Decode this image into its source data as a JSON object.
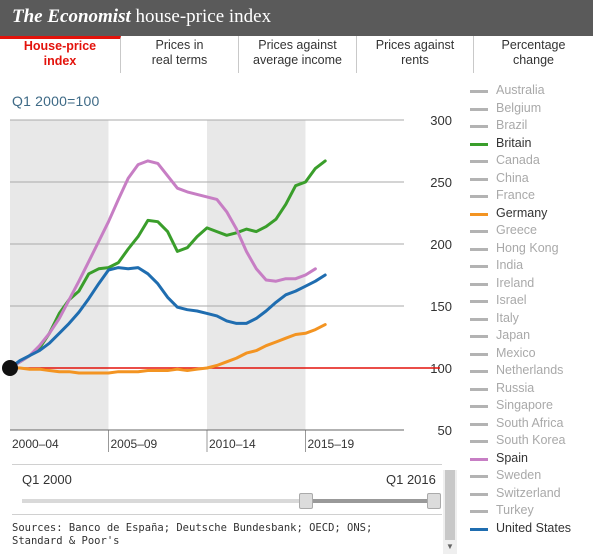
{
  "header": {
    "title_italic": "The Economist",
    "title_rest": " house-price index"
  },
  "tabs": [
    {
      "line1": "House-price",
      "line2": "index",
      "active": true
    },
    {
      "line1": "Prices in",
      "line2": "real terms",
      "active": false
    },
    {
      "line1": "Prices against",
      "line2": "average income",
      "active": false
    },
    {
      "line1": "Prices against",
      "line2": "rents",
      "active": false
    },
    {
      "line1": "Percentage",
      "line2": "change",
      "active": false
    }
  ],
  "range": {
    "start_label": "Q1 2000",
    "end_label": "Q1 2016",
    "start_frac": 0.68,
    "end_frac": 0.985
  },
  "sources": {
    "line1": "Sources: Banco de España; Deutsche Bundesbank; OECD; ONS;",
    "line2": "Standard & Poor's"
  },
  "legend": [
    {
      "name": "Australia",
      "active": false
    },
    {
      "name": "Belgium",
      "active": false
    },
    {
      "name": "Brazil",
      "active": false
    },
    {
      "name": "Britain",
      "active": true,
      "color": "#3a9e2b"
    },
    {
      "name": "Canada",
      "active": false
    },
    {
      "name": "China",
      "active": false
    },
    {
      "name": "France",
      "active": false
    },
    {
      "name": "Germany",
      "active": true,
      "color": "#f39422"
    },
    {
      "name": "Greece",
      "active": false
    },
    {
      "name": "Hong Kong",
      "active": false
    },
    {
      "name": "India",
      "active": false
    },
    {
      "name": "Ireland",
      "active": false
    },
    {
      "name": "Israel",
      "active": false
    },
    {
      "name": "Italy",
      "active": false
    },
    {
      "name": "Japan",
      "active": false
    },
    {
      "name": "Mexico",
      "active": false
    },
    {
      "name": "Netherlands",
      "active": false
    },
    {
      "name": "Russia",
      "active": false
    },
    {
      "name": "Singapore",
      "active": false
    },
    {
      "name": "South Africa",
      "active": false
    },
    {
      "name": "South Korea",
      "active": false
    },
    {
      "name": "Spain",
      "active": true,
      "color": "#c77ec4"
    },
    {
      "name": "Sweden",
      "active": false
    },
    {
      "name": "Switzerland",
      "active": false
    },
    {
      "name": "Turkey",
      "active": false
    },
    {
      "name": "United States",
      "active": true,
      "color": "#1f6db0"
    }
  ],
  "chart_data": {
    "type": "line",
    "title": "",
    "subtitle": "Q1 2000=100",
    "xlabel": "",
    "ylabel": "",
    "ylim": [
      50,
      300
    ],
    "xlim": [
      2000.0,
      2020.0
    ],
    "yticks": [
      50,
      100,
      150,
      200,
      250,
      300
    ],
    "xbands": [
      {
        "label": "2000–04",
        "from": 2000,
        "to": 2005,
        "shaded": true
      },
      {
        "label": "2005–09",
        "from": 2005,
        "to": 2010,
        "shaded": false
      },
      {
        "label": "2010–14",
        "from": 2010,
        "to": 2015,
        "shaded": true
      },
      {
        "label": "2015–19",
        "from": 2015,
        "to": 2020,
        "shaded": false
      }
    ],
    "baseline": {
      "value": 100,
      "color": "#e3120b"
    },
    "marker": {
      "x": 2000.0,
      "y": 100
    },
    "series": [
      {
        "name": "Britain",
        "color": "#3a9e2b",
        "x": [
          2000,
          2000.5,
          2001,
          2001.5,
          2002,
          2002.5,
          2003,
          2003.5,
          2004,
          2004.5,
          2005,
          2005.5,
          2006,
          2006.5,
          2007,
          2007.5,
          2008,
          2008.5,
          2009,
          2009.5,
          2010,
          2010.5,
          2011,
          2011.5,
          2012,
          2012.5,
          2013,
          2013.5,
          2014,
          2014.5,
          2015,
          2015.5,
          2016
        ],
        "y": [
          100,
          105,
          110,
          116,
          128,
          144,
          155,
          162,
          176,
          180,
          181,
          185,
          196,
          206,
          219,
          218,
          210,
          194,
          197,
          206,
          213,
          210,
          207,
          209,
          212,
          210,
          214,
          220,
          232,
          247,
          250,
          261,
          267
        ]
      },
      {
        "name": "Spain",
        "color": "#c77ec4",
        "x": [
          2000,
          2000.5,
          2001,
          2001.5,
          2002,
          2002.5,
          2003,
          2003.5,
          2004,
          2004.5,
          2005,
          2005.5,
          2006,
          2006.5,
          2007,
          2007.5,
          2008,
          2008.5,
          2009,
          2009.5,
          2010,
          2010.5,
          2011,
          2011.5,
          2012,
          2012.5,
          2013,
          2013.5,
          2014,
          2014.5,
          2015,
          2015.5
        ],
        "y": [
          100,
          105,
          110,
          118,
          128,
          140,
          155,
          170,
          186,
          202,
          218,
          236,
          253,
          264,
          267,
          265,
          255,
          245,
          242,
          240,
          238,
          236,
          226,
          212,
          194,
          180,
          171,
          170,
          172,
          172,
          175,
          180
        ]
      },
      {
        "name": "United States",
        "color": "#1f6db0",
        "x": [
          2000,
          2000.5,
          2001,
          2001.5,
          2002,
          2002.5,
          2003,
          2003.5,
          2004,
          2004.5,
          2005,
          2005.5,
          2006,
          2006.5,
          2007,
          2007.5,
          2008,
          2008.5,
          2009,
          2009.5,
          2010,
          2010.5,
          2011,
          2011.5,
          2012,
          2012.5,
          2013,
          2013.5,
          2014,
          2014.5,
          2015,
          2015.5,
          2016
        ],
        "y": [
          100,
          106,
          110,
          114,
          120,
          128,
          136,
          145,
          156,
          168,
          179,
          181,
          180,
          181,
          176,
          168,
          157,
          149,
          147,
          146,
          144,
          142,
          138,
          136,
          136,
          140,
          146,
          153,
          159,
          162,
          166,
          170,
          175
        ]
      },
      {
        "name": "Germany",
        "color": "#f39422",
        "x": [
          2000,
          2000.5,
          2001,
          2001.5,
          2002,
          2002.5,
          2003,
          2003.5,
          2004,
          2004.5,
          2005,
          2005.5,
          2006,
          2006.5,
          2007,
          2007.5,
          2008,
          2008.5,
          2009,
          2009.5,
          2010,
          2010.5,
          2011,
          2011.5,
          2012,
          2012.5,
          2013,
          2013.5,
          2014,
          2014.5,
          2015,
          2015.5,
          2016
        ],
        "y": [
          100,
          100,
          99,
          99,
          98,
          97,
          97,
          96,
          96,
          96,
          96,
          97,
          97,
          97,
          98,
          98,
          98,
          99,
          98,
          99,
          100,
          102,
          105,
          108,
          112,
          114,
          118,
          121,
          124,
          127,
          128,
          131,
          135
        ]
      }
    ]
  }
}
